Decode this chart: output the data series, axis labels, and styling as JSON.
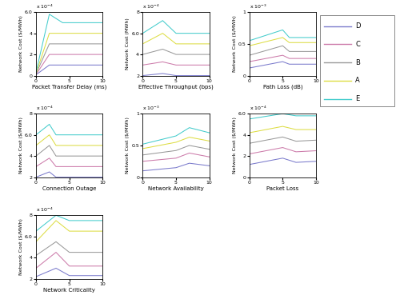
{
  "legend_labels": [
    "D",
    "C",
    "B",
    "A",
    "E"
  ],
  "legend_colors": [
    "#7b7bcc",
    "#cc7baa",
    "#999999",
    "#dddd44",
    "#44cccc"
  ],
  "subplots": [
    {
      "xlabel": "Packet Transfer Delay (ms)",
      "ylabel": "Network Cost ($/MWh)",
      "ytick_scale": 0.0001,
      "ylim": [
        0,
        0.0006
      ],
      "yticks": [
        0,
        0.0002,
        0.0004,
        0.0006
      ],
      "x": [
        0,
        2,
        4,
        10
      ],
      "curves": [
        [
          8e-06,
          0.0001,
          0.0001,
          0.0001
        ],
        [
          1e-05,
          0.0002,
          0.0002,
          0.0002
        ],
        [
          1.5e-05,
          0.0003,
          0.0003,
          0.0003
        ],
        [
          2e-05,
          0.0004,
          0.0004,
          0.0004
        ],
        [
          3e-05,
          0.00058,
          0.0005,
          0.0005
        ]
      ]
    },
    {
      "xlabel": "Effective Throughput (bps)",
      "ylabel": "Network Cost (MWh)",
      "ytick_scale": 0.0001,
      "ylim": [
        0.0002,
        0.0008
      ],
      "yticks": [
        0.0002,
        0.0004,
        0.0006,
        0.0008
      ],
      "x": [
        0,
        3,
        5,
        10
      ],
      "curves": [
        [
          0.0002,
          0.00022,
          0.0002,
          0.0002
        ],
        [
          0.0003,
          0.00033,
          0.0003,
          0.0003
        ],
        [
          0.0004,
          0.00045,
          0.0004,
          0.0004
        ],
        [
          0.0005,
          0.0006,
          0.0005,
          0.0005
        ],
        [
          0.0006,
          0.00072,
          0.0006,
          0.0006
        ]
      ]
    },
    {
      "xlabel": "Path Loss (dB)",
      "ylabel": "Network Cost ($/MWh)",
      "ytick_scale": 0.001,
      "ylim": [
        0,
        0.001
      ],
      "yticks": [
        0,
        0.0005,
        0.001
      ],
      "x": [
        0,
        5,
        6,
        10
      ],
      "curves": [
        [
          0.00012,
          0.00022,
          0.00018,
          0.00018
        ],
        [
          0.00022,
          0.00032,
          0.00027,
          0.00027
        ],
        [
          0.00032,
          0.00047,
          0.00038,
          0.00038
        ],
        [
          0.00047,
          0.0006,
          0.00052,
          0.00052
        ],
        [
          0.00055,
          0.00072,
          0.0006,
          0.0006
        ]
      ]
    },
    {
      "xlabel": "Connection Outage",
      "ylabel": "Network Cost ($/MWh)",
      "ytick_scale": 0.0001,
      "ylim": [
        0.0002,
        0.0008
      ],
      "yticks": [
        0.0002,
        0.0004,
        0.0006,
        0.0008
      ],
      "x": [
        0,
        2,
        3,
        10
      ],
      "curves": [
        [
          0.0002,
          0.00025,
          0.0002,
          0.0002
        ],
        [
          0.0003,
          0.00038,
          0.0003,
          0.0003
        ],
        [
          0.0004,
          0.0005,
          0.0004,
          0.0004
        ],
        [
          0.0005,
          0.0006,
          0.0005,
          0.0005
        ],
        [
          0.0006,
          0.0007,
          0.0006,
          0.0006
        ]
      ]
    },
    {
      "xlabel": "Network Availability",
      "ylabel": "Network Cost ($/MWh)",
      "ytick_scale": 0.001,
      "ylim": [
        0,
        0.001
      ],
      "yticks": [
        0,
        0.0005,
        0.001
      ],
      "x": [
        0,
        5,
        7,
        10
      ],
      "curves": [
        [
          0.0001,
          0.00015,
          0.00022,
          0.00018
        ],
        [
          0.00025,
          0.0003,
          0.00038,
          0.00032
        ],
        [
          0.00035,
          0.00042,
          0.0005,
          0.00044
        ],
        [
          0.00045,
          0.00055,
          0.00063,
          0.00057
        ],
        [
          0.00052,
          0.00065,
          0.00078,
          0.0007
        ]
      ]
    },
    {
      "xlabel": "Packet Loss",
      "ylabel": "Network Cost ($/MWh)",
      "ytick_scale": 0.0001,
      "ylim": [
        0,
        0.0006
      ],
      "yticks": [
        0,
        0.0002,
        0.0004,
        0.0006
      ],
      "x": [
        0,
        5,
        7,
        10
      ],
      "curves": [
        [
          0.00012,
          0.00018,
          0.00014,
          0.00015
        ],
        [
          0.00022,
          0.00028,
          0.00024,
          0.00025
        ],
        [
          0.00032,
          0.00038,
          0.00034,
          0.00035
        ],
        [
          0.00042,
          0.00048,
          0.00045,
          0.00045
        ],
        [
          0.00055,
          0.0006,
          0.00058,
          0.00058
        ]
      ]
    },
    {
      "xlabel": "Network Criticality",
      "ylabel": "Network Cost ($/MWh)",
      "ytick_scale": 0.0001,
      "ylim": [
        0.0002,
        0.0008
      ],
      "yticks": [
        0.0002,
        0.0004,
        0.0006,
        0.0008
      ],
      "x": [
        0,
        3,
        5,
        10
      ],
      "curves": [
        [
          0.00022,
          0.0003,
          0.00023,
          0.00023
        ],
        [
          0.0003,
          0.00045,
          0.00032,
          0.00032
        ],
        [
          0.00042,
          0.00055,
          0.00045,
          0.00045
        ],
        [
          0.00055,
          0.00075,
          0.00065,
          0.00065
        ],
        [
          0.00065,
          0.0008,
          0.00075,
          0.00075
        ]
      ]
    }
  ]
}
